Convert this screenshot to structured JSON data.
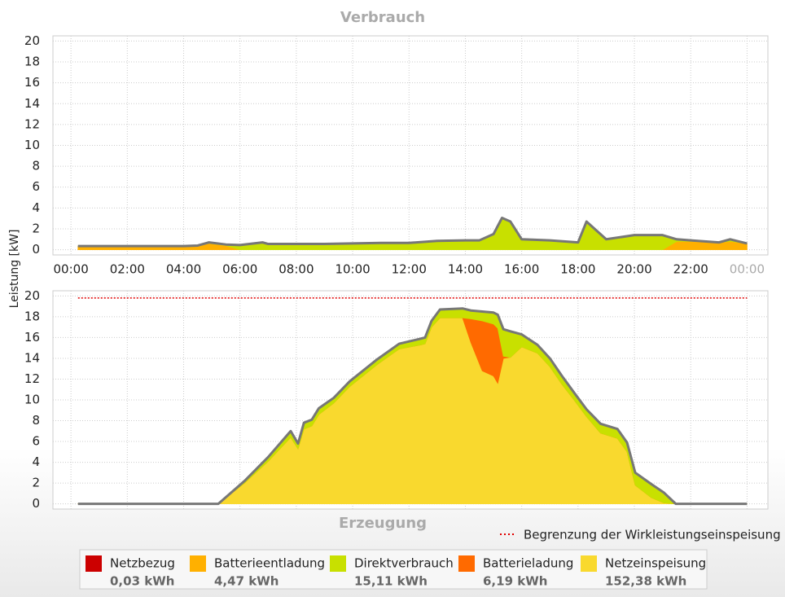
{
  "y_label": "Leistung [kW]",
  "chart_data": [
    {
      "type": "stacked-area",
      "title": "Verbrauch",
      "x": [
        0.25,
        1,
        2,
        3,
        4,
        4.5,
        4.9,
        5.5,
        6,
        6.8,
        7,
        8,
        9,
        10,
        11,
        12,
        13,
        14,
        14.5,
        15,
        15.3,
        15.6,
        16,
        17,
        18,
        18.3,
        19,
        20,
        21,
        21.5,
        22,
        23,
        23.4,
        24
      ],
      "series": [
        {
          "color": "#ffb000",
          "values": [
            0.35,
            0.35,
            0.35,
            0.35,
            0.35,
            0.4,
            0.6,
            0.4,
            0,
            0,
            0,
            0,
            0,
            0,
            0,
            0,
            0,
            0,
            0,
            0,
            0,
            0,
            0,
            0,
            0,
            0,
            0,
            0,
            0,
            0.8,
            0.8,
            0.7,
            0.8,
            0.6
          ]
        },
        {
          "color": "#c8e000",
          "values": [
            0,
            0,
            0,
            0,
            0,
            0,
            0.1,
            0.1,
            0.45,
            0.7,
            0.55,
            0.55,
            0.55,
            0.6,
            0.65,
            0.65,
            0.85,
            0.9,
            0.9,
            1.5,
            3.05,
            2.7,
            1.0,
            0.9,
            0.7,
            2.7,
            1.0,
            1.4,
            1.4,
            0.2,
            0.1,
            0,
            0.2,
            0
          ]
        }
      ],
      "xlim": [
        -0.64,
        24.74
      ],
      "xticks": [
        {
          "value": 0,
          "label": "00:00"
        },
        {
          "value": 2,
          "label": "02:00"
        },
        {
          "value": 4,
          "label": "04:00"
        },
        {
          "value": 6,
          "label": "06:00"
        },
        {
          "value": 8,
          "label": "08:00"
        },
        {
          "value": 10,
          "label": "10:00"
        },
        {
          "value": 12,
          "label": "12:00"
        },
        {
          "value": 14,
          "label": "14:00"
        },
        {
          "value": 16,
          "label": "16:00"
        },
        {
          "value": 18,
          "label": "18:00"
        },
        {
          "value": 20,
          "label": "20:00"
        },
        {
          "value": 22,
          "label": "22:00"
        },
        {
          "value": 24,
          "label": "00:00"
        }
      ],
      "ylim": [
        -0.5,
        20.5
      ],
      "yticks": [
        0,
        2,
        4,
        6,
        8,
        10,
        12,
        14,
        16,
        18,
        20
      ],
      "grid": true
    },
    {
      "type": "stacked-area",
      "title": "Erzeugung",
      "x": [
        0.25,
        5.23,
        6.16,
        7.0,
        7.8,
        8.06,
        8.27,
        8.55,
        8.8,
        9.33,
        9.9,
        10.87,
        11.65,
        12.43,
        12.57,
        12.8,
        13.1,
        13.9,
        14.2,
        14.6,
        15.0,
        15.15,
        15.35,
        15.6,
        16.0,
        16.56,
        17.0,
        17.43,
        17.86,
        18.3,
        18.8,
        19.4,
        19.74,
        20.03,
        20.6,
        21.04,
        21.47,
        24
      ],
      "series": [
        {
          "color": "#f9d92e",
          "values": [
            0,
            0,
            2.0,
            4.1,
            6.4,
            5.3,
            7.2,
            7.5,
            8.6,
            9.7,
            11.3,
            13.4,
            14.9,
            15.3,
            15.4,
            17.0,
            17.9,
            17.9,
            15.5,
            12.8,
            12.3,
            11.6,
            14.0,
            14.1,
            15.1,
            14.5,
            13.2,
            11.5,
            10.0,
            8.4,
            6.8,
            6.3,
            5.0,
            1.8,
            0.6,
            0.1,
            0,
            0
          ]
        },
        {
          "color": "#ff6a00",
          "values": [
            0,
            0,
            0,
            0,
            0,
            0,
            0,
            0,
            0,
            0,
            0,
            0,
            0,
            0,
            0,
            0,
            0,
            0,
            2.3,
            4.8,
            5.0,
            5.3,
            0.2,
            0,
            0,
            0,
            0,
            0,
            0,
            0,
            0,
            0,
            0,
            0,
            0,
            0,
            0,
            0
          ]
        },
        {
          "color": "#c8e000",
          "values": [
            0,
            0,
            0.2,
            0.4,
            0.6,
            0.5,
            0.6,
            0.6,
            0.6,
            0.5,
            0.5,
            0.5,
            0.5,
            0.6,
            0.6,
            0.6,
            0.8,
            0.9,
            0.8,
            0.9,
            1.1,
            1.3,
            2.6,
            2.5,
            1.2,
            0.8,
            0.8,
            0.8,
            0.7,
            0.7,
            0.9,
            0.9,
            0.9,
            1.2,
            1.3,
            1.0,
            0,
            0
          ]
        }
      ],
      "xlim": [
        -0.64,
        24.74
      ],
      "ylim": [
        -0.5,
        20.5
      ],
      "yticks": [
        0,
        2,
        4,
        6,
        8,
        10,
        12,
        14,
        16,
        18,
        20
      ],
      "grid": true,
      "limit": 19.8,
      "limit_color": "#e00000",
      "limit_label": "Begrenzung der Wirkleistungseinspeisung"
    }
  ],
  "legend": [
    {
      "name": "Netzbezug",
      "color": "#cc0000",
      "total": "0,03 kWh"
    },
    {
      "name": "Batterieentladung",
      "color": "#ffb000",
      "total": "4,47 kWh"
    },
    {
      "name": "Direktverbrauch",
      "color": "#c8e000",
      "total": "15,11 kWh"
    },
    {
      "name": "Batterieladung",
      "color": "#ff6a00",
      "total": "6,19 kWh"
    },
    {
      "name": "Netzeinspeisung",
      "color": "#f9d92e",
      "total": "152,38 kWh"
    }
  ]
}
